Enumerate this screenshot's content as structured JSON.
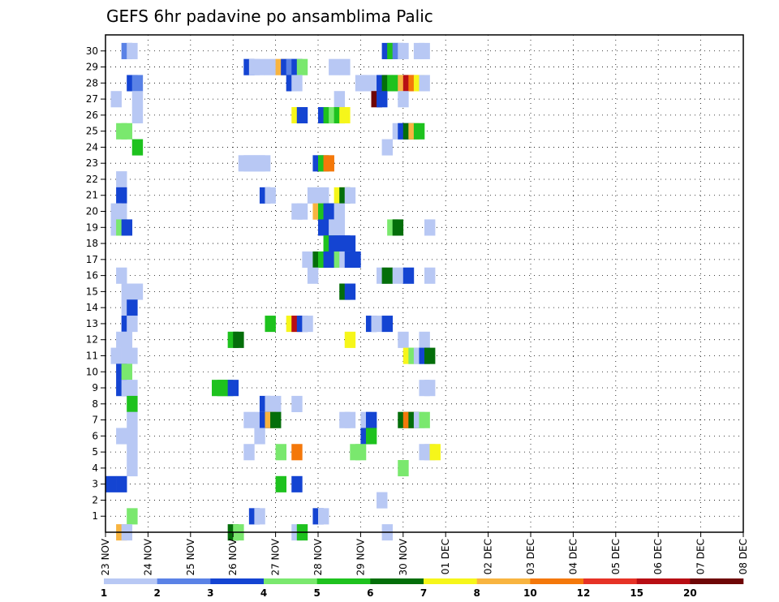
{
  "chart_data": {
    "type": "heatmap",
    "title": "GEFS 6hr padavine po ansamblima Palic",
    "xlabel": "",
    "ylabel": "",
    "x_ticks": [
      "23 NOV",
      "24 NOV",
      "25 NOV",
      "26 NOV",
      "27 NOV",
      "28 NOV",
      "29 NOV",
      "30 NOV",
      "01 DEC",
      "02 DEC",
      "03 DEC",
      "04 DEC",
      "05 DEC",
      "06 DEC",
      "07 DEC",
      "08 DEC"
    ],
    "y_ticks": [
      "1",
      "2",
      "3",
      "4",
      "5",
      "6",
      "7",
      "8",
      "9",
      "10",
      "11",
      "12",
      "13",
      "14",
      "15",
      "16",
      "17",
      "18",
      "19",
      "20",
      "21",
      "22",
      "23",
      "24",
      "25",
      "26",
      "27",
      "28",
      "29",
      "30"
    ],
    "x_range_steps": [
      0,
      60
    ],
    "y_range_members": [
      0,
      30
    ],
    "step_hours": 6,
    "grid": "dotted",
    "colorbar": {
      "labels": [
        "1",
        "2",
        "3",
        "4",
        "5",
        "6",
        "7",
        "8",
        "10",
        "12",
        "15",
        "20"
      ],
      "colors": [
        "#b8c8f4",
        "#5a82e6",
        "#1444d2",
        "#7ae86e",
        "#1ec21e",
        "#046e0a",
        "#f6f61a",
        "#f8b440",
        "#f4780a",
        "#e63226",
        "#b80e14",
        "#6e0606"
      ]
    },
    "cells": [
      [
        30,
        1.5,
        2
      ],
      [
        30,
        2,
        1
      ],
      [
        30,
        26,
        3
      ],
      [
        30,
        26.5,
        5
      ],
      [
        30,
        27,
        2
      ],
      [
        30,
        27.5,
        1
      ],
      [
        30,
        29,
        1
      ],
      [
        30,
        29.5,
        1
      ],
      [
        29,
        13,
        3
      ],
      [
        29,
        13.5,
        1
      ],
      [
        29,
        14,
        1
      ],
      [
        29,
        15,
        1
      ],
      [
        29,
        16,
        8
      ],
      [
        29,
        16.5,
        3
      ],
      [
        29,
        17,
        2
      ],
      [
        29,
        17.5,
        3
      ],
      [
        29,
        18,
        4
      ],
      [
        29,
        21,
        1
      ],
      [
        29,
        22,
        1
      ],
      [
        28,
        2,
        3
      ],
      [
        28,
        2.5,
        2
      ],
      [
        28,
        17,
        3
      ],
      [
        28,
        17.5,
        1
      ],
      [
        28,
        23.5,
        1
      ],
      [
        28,
        24,
        1
      ],
      [
        28,
        25,
        1
      ],
      [
        28,
        25.5,
        3
      ],
      [
        28,
        26,
        6
      ],
      [
        28,
        26.5,
        5
      ],
      [
        28,
        27,
        5
      ],
      [
        28,
        27.5,
        8
      ],
      [
        28,
        28,
        15
      ],
      [
        28,
        28.5,
        10
      ],
      [
        28,
        29,
        7
      ],
      [
        28,
        29.5,
        1
      ],
      [
        27,
        0.5,
        1
      ],
      [
        27,
        2.5,
        1
      ],
      [
        27,
        21.5,
        1
      ],
      [
        27,
        25,
        20
      ],
      [
        27,
        25.5,
        3
      ],
      [
        27,
        27.5,
        1
      ],
      [
        26,
        2.5,
        1
      ],
      [
        26,
        17.5,
        7
      ],
      [
        26,
        18,
        3
      ],
      [
        26,
        20,
        3
      ],
      [
        26,
        20.5,
        5
      ],
      [
        26,
        21,
        4
      ],
      [
        26,
        21.5,
        5
      ],
      [
        26,
        22,
        7
      ],
      [
        25,
        1,
        4
      ],
      [
        25,
        1.5,
        4
      ],
      [
        25,
        27,
        1
      ],
      [
        25,
        27.5,
        3
      ],
      [
        25,
        28,
        6
      ],
      [
        25,
        28.5,
        8
      ],
      [
        25,
        29,
        5
      ],
      [
        24,
        2.5,
        5
      ],
      [
        24,
        26,
        1
      ],
      [
        23,
        12.5,
        1
      ],
      [
        23,
        13,
        1
      ],
      [
        23,
        13.5,
        1
      ],
      [
        23,
        14,
        1
      ],
      [
        23,
        14.5,
        1
      ],
      [
        23,
        19.5,
        3
      ],
      [
        23,
        20,
        5
      ],
      [
        23,
        20.5,
        10
      ],
      [
        22,
        1,
        1
      ],
      [
        21,
        1,
        3
      ],
      [
        21,
        14.5,
        3
      ],
      [
        21,
        15,
        1
      ],
      [
        21,
        19,
        1
      ],
      [
        21,
        20,
        1
      ],
      [
        21,
        21.5,
        7
      ],
      [
        21,
        22,
        6
      ],
      [
        21,
        22.5,
        1
      ],
      [
        20,
        0.5,
        1
      ],
      [
        20,
        1,
        1
      ],
      [
        20,
        17.5,
        1
      ],
      [
        20,
        18,
        1
      ],
      [
        20,
        19.5,
        8
      ],
      [
        20,
        20,
        5
      ],
      [
        20,
        20.5,
        3
      ],
      [
        20,
        21,
        3
      ],
      [
        20,
        21.5,
        1
      ],
      [
        19,
        0.5,
        1
      ],
      [
        19,
        1,
        4
      ],
      [
        19,
        1.5,
        3
      ],
      [
        19,
        20,
        3
      ],
      [
        19,
        20.5,
        3
      ],
      [
        19,
        21,
        1
      ],
      [
        19,
        21.5,
        1
      ],
      [
        19,
        26.5,
        4
      ],
      [
        19,
        27,
        6
      ],
      [
        19,
        30,
        1
      ],
      [
        18,
        20.5,
        5
      ],
      [
        18,
        21,
        3
      ],
      [
        18,
        21.5,
        3
      ],
      [
        18,
        22,
        3
      ],
      [
        18,
        22.5,
        3
      ],
      [
        17,
        18.5,
        1
      ],
      [
        17,
        19.5,
        6
      ],
      [
        17,
        20,
        5
      ],
      [
        17,
        20.5,
        3
      ],
      [
        17,
        21,
        3
      ],
      [
        17,
        21.5,
        4
      ],
      [
        17,
        22,
        1
      ],
      [
        17,
        22.5,
        3
      ],
      [
        17,
        23,
        3
      ],
      [
        16,
        1,
        1
      ],
      [
        16,
        19,
        1
      ],
      [
        16,
        25.5,
        1
      ],
      [
        16,
        26,
        6
      ],
      [
        16,
        27,
        1
      ],
      [
        16,
        28,
        3
      ],
      [
        16,
        30,
        1
      ],
      [
        15,
        1.5,
        1
      ],
      [
        15,
        2,
        1
      ],
      [
        15,
        2.5,
        1
      ],
      [
        15,
        22,
        6
      ],
      [
        15,
        22.5,
        3
      ],
      [
        14,
        1.5,
        1
      ],
      [
        14,
        2,
        3
      ],
      [
        13,
        1.5,
        3
      ],
      [
        13,
        2,
        1
      ],
      [
        13,
        15,
        5
      ],
      [
        13,
        17,
        7
      ],
      [
        13,
        17.5,
        15
      ],
      [
        13,
        18,
        3
      ],
      [
        13,
        18.5,
        1
      ],
      [
        13,
        24.5,
        3
      ],
      [
        13,
        25,
        1
      ],
      [
        13,
        26,
        3
      ],
      [
        12,
        1,
        1
      ],
      [
        12,
        1.5,
        1
      ],
      [
        12,
        11.5,
        5
      ],
      [
        12,
        12,
        6
      ],
      [
        12,
        22.5,
        7
      ],
      [
        12,
        27.5,
        1
      ],
      [
        12,
        29.5,
        1
      ],
      [
        11,
        0.5,
        1
      ],
      [
        11,
        1.5,
        1
      ],
      [
        11,
        2,
        1
      ],
      [
        11,
        28,
        7
      ],
      [
        11,
        28.5,
        4
      ],
      [
        11,
        29,
        1
      ],
      [
        11,
        29.5,
        3
      ],
      [
        11,
        30,
        6
      ],
      [
        10,
        1,
        3
      ],
      [
        10,
        1.5,
        4
      ],
      [
        9,
        1,
        3
      ],
      [
        9,
        1.5,
        1
      ],
      [
        9,
        2,
        1
      ],
      [
        9,
        10,
        5
      ],
      [
        9,
        10.5,
        5
      ],
      [
        9,
        11,
        5
      ],
      [
        9,
        11.5,
        3
      ],
      [
        9,
        29.5,
        1
      ],
      [
        9,
        30,
        1
      ],
      [
        8,
        2,
        5
      ],
      [
        8,
        14.5,
        3
      ],
      [
        8,
        15,
        1
      ],
      [
        8,
        15.5,
        1
      ],
      [
        8,
        17.5,
        1
      ],
      [
        7,
        2,
        1
      ],
      [
        7,
        13,
        1
      ],
      [
        7,
        14,
        1
      ],
      [
        7,
        14.5,
        3
      ],
      [
        7,
        15,
        8
      ],
      [
        7,
        15.5,
        6
      ],
      [
        7,
        22,
        1
      ],
      [
        7,
        22.5,
        1
      ],
      [
        7,
        24,
        1
      ],
      [
        7,
        24.5,
        3
      ],
      [
        7,
        27.5,
        6
      ],
      [
        7,
        28,
        10
      ],
      [
        7,
        28.5,
        6
      ],
      [
        7,
        29,
        1
      ],
      [
        7,
        29.5,
        4
      ],
      [
        6,
        1,
        1
      ],
      [
        6,
        1.5,
        1
      ],
      [
        6,
        2,
        1
      ],
      [
        6,
        14,
        1
      ],
      [
        6,
        24,
        3
      ],
      [
        6,
        24.5,
        5
      ],
      [
        5,
        2,
        1
      ],
      [
        5,
        13,
        1
      ],
      [
        5,
        16,
        4
      ],
      [
        5,
        17.5,
        10
      ],
      [
        5,
        23,
        4
      ],
      [
        5,
        23.5,
        4
      ],
      [
        5,
        29.5,
        1
      ],
      [
        5,
        30,
        1
      ],
      [
        5,
        30.5,
        7
      ],
      [
        4,
        2,
        1
      ],
      [
        4,
        27.5,
        4
      ],
      [
        3,
        0,
        3
      ],
      [
        3,
        1,
        3
      ],
      [
        3,
        16,
        5
      ],
      [
        3,
        17.5,
        3
      ],
      [
        2,
        25.5,
        1
      ],
      [
        1,
        2,
        4
      ],
      [
        1,
        13.5,
        3
      ],
      [
        1,
        14,
        1
      ],
      [
        1,
        19.5,
        3
      ],
      [
        1,
        20,
        1
      ],
      [
        0,
        1,
        8
      ],
      [
        0,
        1.5,
        1
      ],
      [
        0,
        11.5,
        6
      ],
      [
        0,
        12,
        4
      ],
      [
        0,
        17.5,
        1
      ],
      [
        0,
        18,
        5
      ],
      [
        0,
        26,
        1
      ]
    ]
  }
}
